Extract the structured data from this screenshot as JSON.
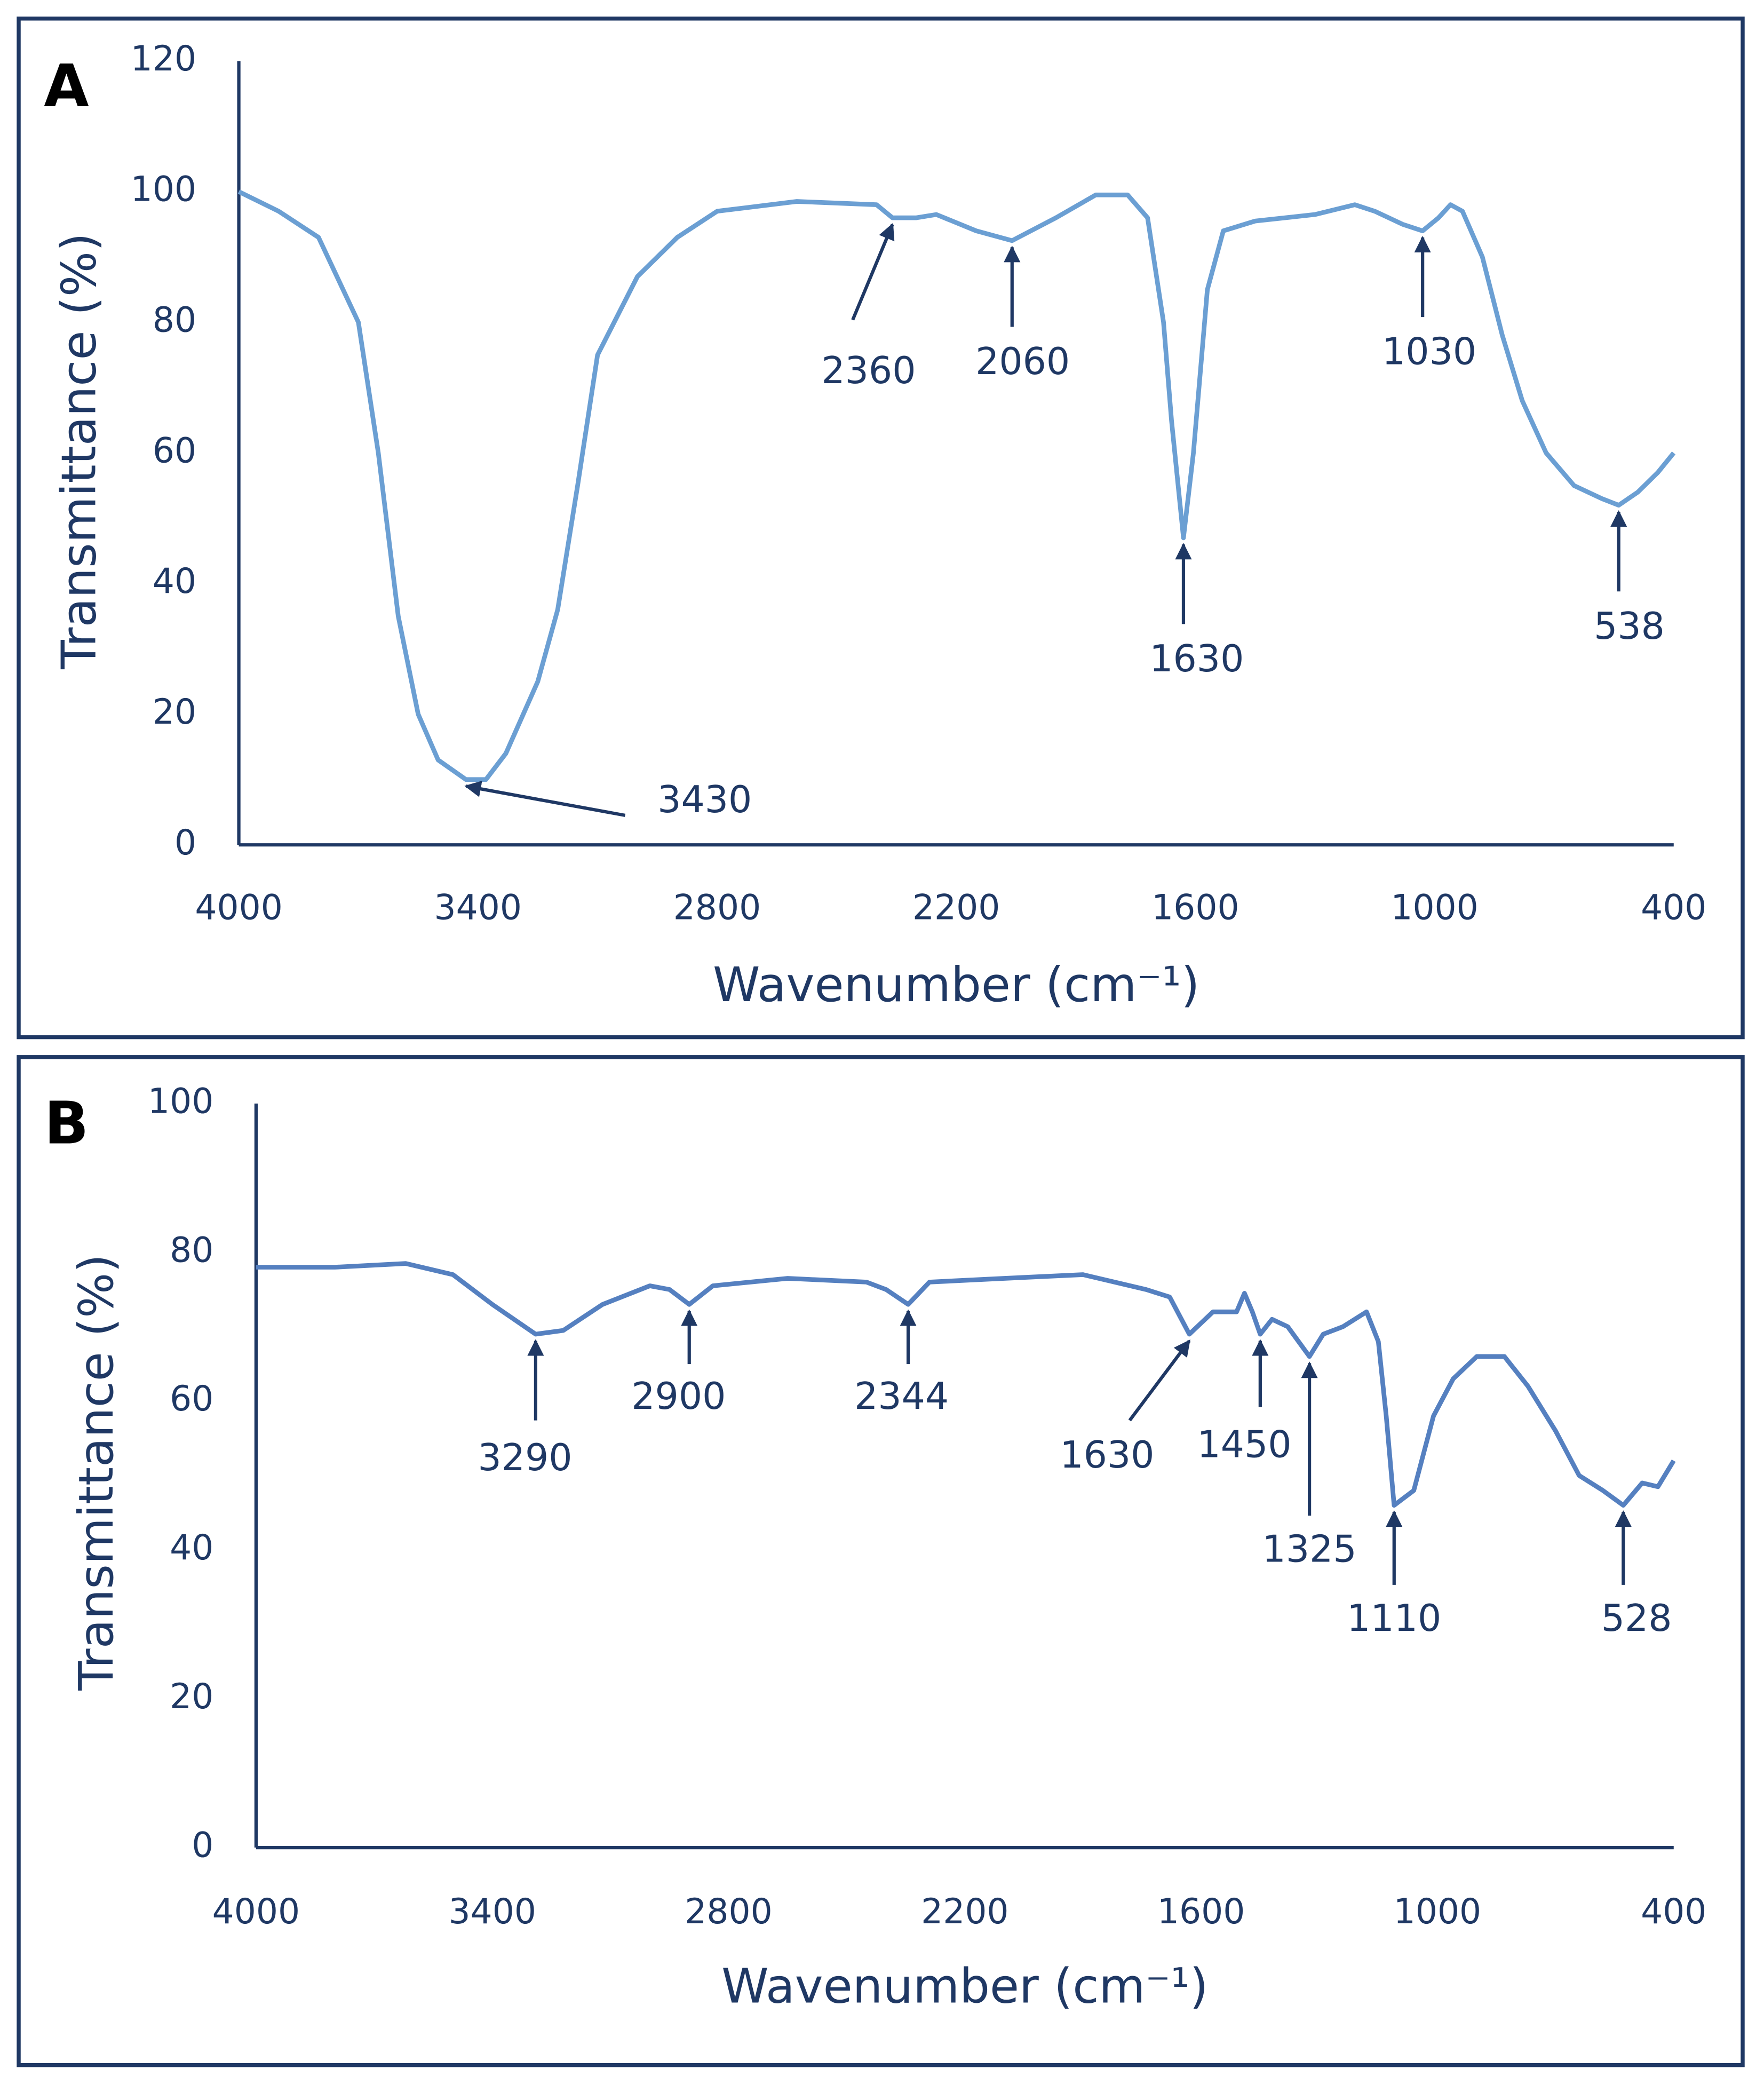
{
  "chart_data": [
    {
      "type": "line",
      "panel": "A",
      "xlabel": "Wavenumber (cm⁻¹)",
      "ylabel": "Transmittance (%)",
      "xlim": [
        4000,
        400
      ],
      "xticks": [
        4000,
        3400,
        2800,
        2200,
        1600,
        1000,
        400
      ],
      "ylim": [
        0,
        120
      ],
      "yticks": [
        0,
        20,
        40,
        60,
        80,
        100,
        120
      ],
      "x": [
        4000,
        3900,
        3800,
        3700,
        3650,
        3600,
        3550,
        3500,
        3430,
        3380,
        3330,
        3250,
        3200,
        3150,
        3100,
        3000,
        2900,
        2800,
        2600,
        2400,
        2360,
        2300,
        2250,
        2150,
        2060,
        1950,
        1850,
        1770,
        1720,
        1680,
        1660,
        1630,
        1605,
        1570,
        1530,
        1450,
        1300,
        1200,
        1150,
        1080,
        1030,
        990,
        960,
        930,
        880,
        830,
        780,
        720,
        650,
        580,
        538,
        490,
        440,
        400
      ],
      "series": [
        {
          "name": "A",
          "color": "#6b9fd3",
          "values": [
            100,
            97,
            93,
            80,
            60,
            35,
            20,
            13,
            10,
            10,
            14,
            25,
            36,
            55,
            75,
            87,
            93,
            97,
            98.5,
            98,
            96,
            96,
            96.5,
            94,
            92.5,
            96,
            99.5,
            99.5,
            96,
            80,
            65,
            47,
            60,
            85,
            94,
            95.5,
            96.5,
            98,
            97,
            95,
            94,
            96,
            98,
            97,
            90,
            78,
            68,
            60,
            55,
            53,
            52,
            54,
            57,
            60
          ]
        }
      ],
      "annotations": [
        3430,
        2360,
        2060,
        1630,
        1030,
        538
      ]
    },
    {
      "type": "line",
      "panel": "B",
      "xlabel": "Wavenumber (cm⁻¹)",
      "ylabel": "Transmittance (%)",
      "xlim": [
        4000,
        400
      ],
      "xticks": [
        4000,
        3400,
        2800,
        2200,
        1600,
        1000,
        400
      ],
      "ylim": [
        0,
        100
      ],
      "yticks": [
        0,
        20,
        40,
        60,
        80,
        100
      ],
      "x": [
        4000,
        3800,
        3620,
        3500,
        3400,
        3290,
        3220,
        3120,
        3000,
        2950,
        2900,
        2840,
        2650,
        2450,
        2400,
        2344,
        2290,
        2100,
        1900,
        1740,
        1680,
        1630,
        1570,
        1510,
        1490,
        1470,
        1450,
        1420,
        1380,
        1325,
        1290,
        1240,
        1180,
        1150,
        1130,
        1110,
        1060,
        1010,
        960,
        900,
        830,
        770,
        700,
        640,
        580,
        528,
        480,
        440,
        400
      ],
      "series": [
        {
          "name": "B",
          "color": "#5580c0",
          "values": [
            78,
            78,
            78.5,
            77,
            73,
            69,
            69.5,
            73,
            75.5,
            75,
            73,
            75.5,
            76.5,
            76,
            75,
            73,
            76,
            76.5,
            77,
            75,
            74,
            69,
            72,
            72,
            74.5,
            72,
            69,
            71,
            70,
            66,
            69,
            70,
            72,
            68,
            58,
            46,
            48,
            58,
            63,
            66,
            66,
            62,
            56,
            50,
            48,
            46,
            49,
            48.5,
            52
          ]
        }
      ],
      "annotations": [
        3290,
        2900,
        2344,
        1630,
        1450,
        1325,
        1110,
        528
      ]
    }
  ]
}
